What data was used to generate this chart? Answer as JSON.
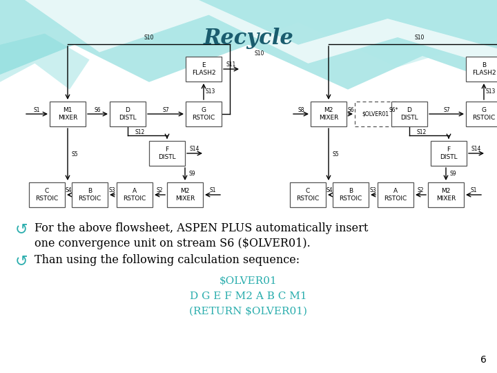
{
  "title": "Recycle",
  "title_color": "#1a5c6e",
  "title_fontsize": 22,
  "bg_color": "#ffffff",
  "teal_color": "#2aadad",
  "text_color": "#000000",
  "page_num": "6",
  "code_line1": "$OLVER01",
  "code_line2": "D G E F M2 A B C M1",
  "code_line3": "(RETURN $OLVER01)",
  "wave1_color": "#7dd8d8",
  "wave2_color": "#aee8e8",
  "wave3_color": "#d0f0f0"
}
